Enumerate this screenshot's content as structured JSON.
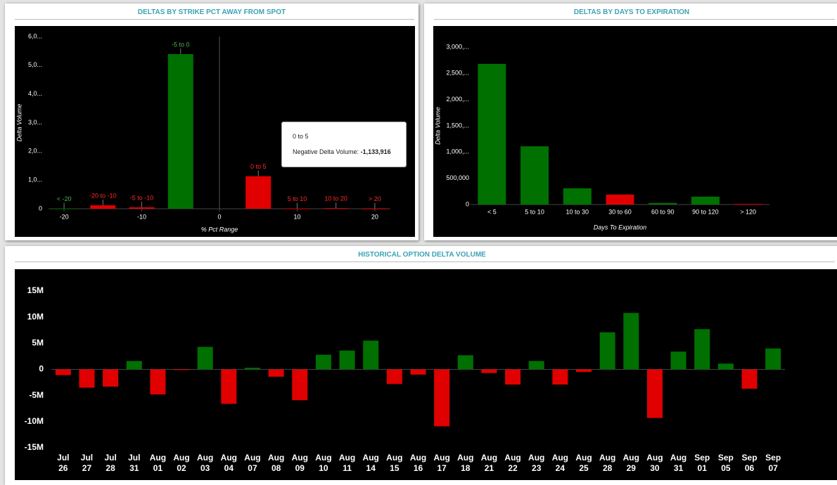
{
  "chart_data": [
    {
      "type": "bar",
      "title": "DELTAS BY STRIKE PCT AWAY FROM SPOT",
      "x_label": "% Pct Range",
      "y_label": "Delta Volume",
      "categories": [
        "< -20",
        "-20 to -10",
        "-5 to -10",
        "-5 to 0",
        "0 to 5",
        "5 to 10",
        "10 to 20",
        "> 20"
      ],
      "x": [
        -20,
        -15,
        -10,
        -5,
        5,
        10,
        15,
        20
      ],
      "values": [
        10000,
        120000,
        50000,
        5390000,
        1133916,
        10000,
        20000,
        5000
      ],
      "colors": [
        "#007000",
        "#e00000",
        "#e00000",
        "#007000",
        "#e00000",
        "#e00000",
        "#e00000",
        "#e00000"
      ],
      "data_labels": true,
      "xlim": [
        -22,
        22
      ],
      "xticks": [
        -20,
        -10,
        0,
        10,
        20
      ],
      "ylim": [
        0,
        6000000
      ],
      "yticks": [
        0,
        {
          "value": 1000000,
          "label": "1,0..."
        },
        {
          "value": 2000000,
          "label": "2,0..."
        },
        {
          "value": 3000000,
          "label": "3,0..."
        },
        {
          "value": 4000000,
          "label": "4,0..."
        },
        {
          "value": 5000000,
          "label": "5,0..."
        },
        {
          "value": 6000000,
          "label": "6,0..."
        }
      ],
      "tooltip": {
        "title": "0 to 5",
        "label": "Negative Delta Volume:",
        "value": "-1,133,916"
      }
    },
    {
      "type": "bar",
      "title": "DELTAS BY DAYS TO EXPIRATION",
      "x_label": "Days To Expiration",
      "y_label": "Delta Volume",
      "categories": [
        "< 5",
        "5 to 10",
        "10 to 30",
        "30 to 60",
        "60 to 90",
        "90 to 120",
        "> 120"
      ],
      "values": [
        2680000,
        1110000,
        310000,
        190000,
        30000,
        150000,
        10000
      ],
      "colors": [
        "#007000",
        "#007000",
        "#007000",
        "#e00000",
        "#007000",
        "#007000",
        "#e00000"
      ],
      "ylim": [
        0,
        3000000
      ],
      "yticks": [
        0,
        {
          "value": 500000,
          "label": "500,000"
        },
        {
          "value": 1000000,
          "label": "1,000,..."
        },
        {
          "value": 1500000,
          "label": "1,500,..."
        },
        {
          "value": 2000000,
          "label": "2,000,..."
        },
        {
          "value": 2500000,
          "label": "2,500,..."
        },
        {
          "value": 3000000,
          "label": "3,000,..."
        }
      ]
    },
    {
      "type": "bar",
      "title": "HISTORICAL OPTION DELTA VOLUME",
      "categories": [
        "Jul 26",
        "Jul 27",
        "Jul 28",
        "Jul 31",
        "Aug 01",
        "Aug 02",
        "Aug 03",
        "Aug 04",
        "Aug 07",
        "Aug 08",
        "Aug 09",
        "Aug 10",
        "Aug 11",
        "Aug 14",
        "Aug 15",
        "Aug 16",
        "Aug 17",
        "Aug 18",
        "Aug 21",
        "Aug 22",
        "Aug 23",
        "Aug 24",
        "Aug 25",
        "Aug 28",
        "Aug 29",
        "Aug 30",
        "Aug 31",
        "Sep 01",
        "Sep 05",
        "Sep 06",
        "Sep 07"
      ],
      "values": [
        -1100000,
        -3500000,
        -3300000,
        1600000,
        -4800000,
        -100000,
        4300000,
        -6600000,
        300000,
        -1400000,
        -5900000,
        2800000,
        3600000,
        5500000,
        -2800000,
        -1000000,
        -10900000,
        2700000,
        -700000,
        -2900000,
        1600000,
        -2900000,
        -500000,
        7100000,
        10800000,
        -9300000,
        3400000,
        7700000,
        1100000,
        -3700000,
        4000000
      ],
      "positive_color": "#007000",
      "negative_color": "#e00000",
      "ylim": [
        -15000000,
        15000000
      ],
      "yticks": [
        {
          "value": -15000000,
          "label": "-15M"
        },
        {
          "value": -10000000,
          "label": "-10M"
        },
        {
          "value": -5000000,
          "label": "-5M"
        },
        0,
        {
          "value": 5000000,
          "label": "5M"
        },
        {
          "value": 10000000,
          "label": "10M"
        },
        {
          "value": 15000000,
          "label": "15M"
        }
      ]
    }
  ]
}
